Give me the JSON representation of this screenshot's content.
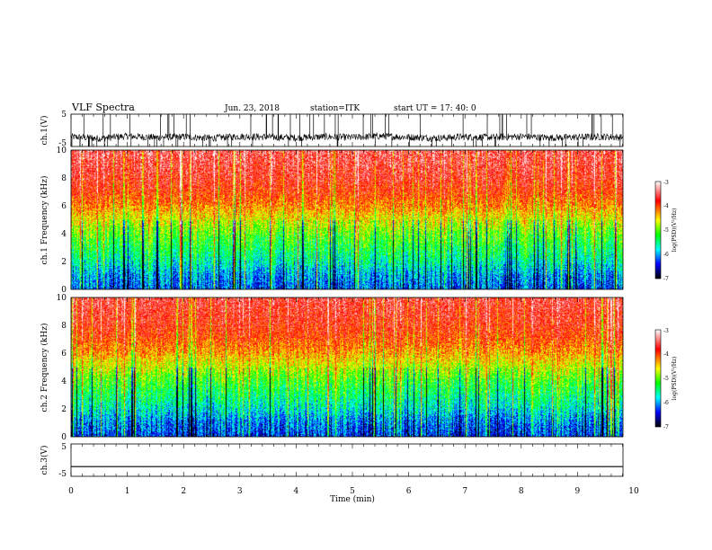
{
  "header": {
    "title": "VLF Spectra",
    "date": "Jun. 23, 2018",
    "station": "station=ITK",
    "start": "start UT =  17: 40: 0"
  },
  "colorbar": {
    "label": "log(PSD)(V²/Hz)",
    "ticks": [
      "-3",
      "-4",
      "-5",
      "-6",
      "-7"
    ],
    "colors": [
      "#ffffff",
      "#ff0000",
      "#ffff00",
      "#00ff00",
      "#00ffff",
      "#0000ff",
      "#000000"
    ]
  },
  "chart_data": [
    {
      "type": "line",
      "panel": "ch1",
      "ylabel": "ch.1(V)",
      "ylim": [
        -5,
        5
      ],
      "ytick_labels": [
        "5",
        "-5"
      ],
      "x": [
        0,
        0.5,
        1,
        1.5,
        2,
        2.5,
        3,
        3.5,
        4,
        4.5,
        5,
        5.5,
        6,
        6.5,
        7,
        7.5,
        8,
        8.5,
        9,
        9.5,
        9.8
      ],
      "y": [
        -2,
        -2.5,
        -1.8,
        -2.2,
        -2,
        -2.4,
        -1.9,
        -2.1,
        -2.3,
        -2,
        -2.2,
        -1.8,
        -2.1,
        -2.4,
        -2,
        -2.2,
        -1.9,
        -2.3,
        -2.1,
        -2,
        -2.2
      ],
      "note": "noisy signal with frequent spikes reaching ±5 V"
    },
    {
      "type": "heatmap",
      "panel": "ch1-spectrogram",
      "ylabel": "ch.1 Frequency (kHz)",
      "ylim": [
        0,
        10
      ],
      "ytick_labels": [
        "0",
        "2",
        "4",
        "6",
        "8",
        "10"
      ],
      "xlim": [
        0,
        9.8
      ],
      "z_range_log_psd": [
        -7,
        -3
      ],
      "profile_freq_khz": [
        0,
        1,
        2,
        3,
        4,
        5,
        6,
        7,
        8,
        9,
        10
      ],
      "profile_log_psd": [
        -6.2,
        -6,
        -5.6,
        -5.3,
        -5,
        -4.6,
        -4.2,
        -3.9,
        -3.7,
        -3.6,
        -3.5
      ]
    },
    {
      "type": "heatmap",
      "panel": "ch2-spectrogram",
      "ylabel": "ch.2 Frequency (kHz)",
      "ylim": [
        0,
        10
      ],
      "ytick_labels": [
        "0",
        "2",
        "4",
        "6",
        "8",
        "10"
      ],
      "xlim": [
        0,
        9.8
      ],
      "z_range_log_psd": [
        -7,
        -3
      ],
      "profile_freq_khz": [
        0,
        1,
        2,
        3,
        4,
        5,
        6,
        7,
        8,
        9,
        10
      ],
      "profile_log_psd": [
        -6.3,
        -6.1,
        -5.7,
        -5.4,
        -5.1,
        -4.7,
        -4.3,
        -4,
        -3.8,
        -3.7,
        -3.6
      ]
    },
    {
      "type": "line",
      "panel": "ch3",
      "ylabel": "ch.3(V)",
      "ylim": [
        -5,
        5
      ],
      "ytick_labels": [
        "5",
        "-5"
      ],
      "x": [
        0,
        9.8
      ],
      "y": [
        -2,
        -2
      ]
    }
  ],
  "xaxis": {
    "label": "Time (min)",
    "xlim": [
      0,
      10
    ],
    "tick_labels": [
      "0",
      "1",
      "2",
      "3",
      "4",
      "5",
      "6",
      "7",
      "8",
      "9",
      "10"
    ]
  }
}
